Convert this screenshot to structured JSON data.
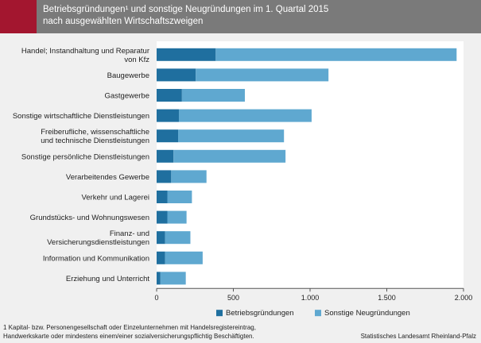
{
  "header": {
    "title_line1": "Betriebsgründungen¹ und sonstige Neugründungen im 1. Quartal 2015",
    "title_line2": "nach ausgewählten Wirtschaftszweigen"
  },
  "colors": {
    "header_bg": "#7a7a7a",
    "accent": "#a3162f",
    "betriebsgruendungen": "#1f6f9f",
    "sonstige": "#5fa8d0"
  },
  "chart_data": {
    "type": "bar",
    "orientation": "horizontal",
    "stacked": true,
    "categories": [
      [
        "Handel; Instandhaltung und Reparatur",
        "von Kfz"
      ],
      [
        "Baugewerbe"
      ],
      [
        "Gastgewerbe"
      ],
      [
        "Sonstige wirtschaftliche Dienstleistungen"
      ],
      [
        "Freiberufliche, wissenschaftliche",
        "und technische Dienstleistungen"
      ],
      [
        "Sonstige persönliche Dienstleistungen"
      ],
      [
        "Verarbeitendes Gewerbe"
      ],
      [
        "Verkehr und Lagerei"
      ],
      [
        "Grundstücks- und Wohnungswesen"
      ],
      [
        "Finanz- und",
        "Versicherungsdienstleistungen"
      ],
      [
        "Information und Kommunikation"
      ],
      [
        "Erziehung und Unterricht"
      ]
    ],
    "series": [
      {
        "name": "Betriebsgründungen",
        "values": [
          385,
          255,
          165,
          145,
          140,
          110,
          95,
          70,
          70,
          55,
          55,
          25
        ]
      },
      {
        "name": "Sonstige Neugründungen",
        "values": [
          1570,
          865,
          410,
          865,
          690,
          730,
          230,
          160,
          125,
          165,
          245,
          165
        ]
      }
    ],
    "xlim": [
      0,
      2000
    ],
    "xticks": [
      0,
      500,
      1000,
      1500,
      2000
    ],
    "xtick_labels": [
      "0",
      "500",
      "1.000",
      "1.500",
      "2.000"
    ],
    "legend": "bottom-center"
  },
  "footnote": {
    "line1": "1 Kapital- bzw. Personengesellschaft oder Einzelunternehmen mit Handelsregistereintrag,",
    "line2": "Handwerkskarte oder mindestens einem/einer sozialversicherungspflichtig Beschäftigten."
  },
  "source": "Statistisches Landesamt Rheinland-Pfalz"
}
